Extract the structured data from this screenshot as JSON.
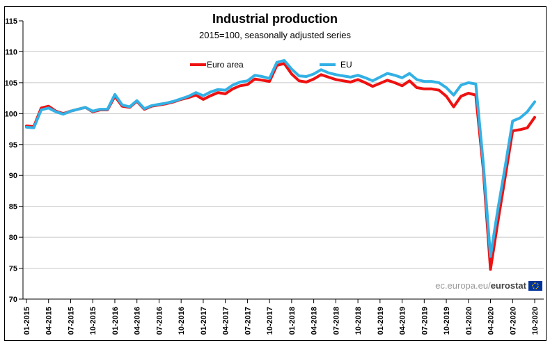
{
  "title": "Industrial production",
  "subtitle": "2015=100, seasonally adjusted series",
  "watermark": {
    "prefix": "ec.europa.eu/",
    "brand": "eurostat",
    "flag_icon": "eu-flag-icon",
    "flag_blue": "#003399",
    "flag_star_yellow": "#ffcc00"
  },
  "chart_data": {
    "type": "line",
    "title": "Industrial production",
    "subtitle": "2015=100, seasonally adjusted series",
    "x_frequency": "monthly",
    "x_start": "01-2015",
    "x_end": "10-2020",
    "x_tick_labels": [
      "01-2015",
      "04-2015",
      "07-2015",
      "10-2015",
      "01-2016",
      "04-2016",
      "07-2016",
      "10-2016",
      "01-2017",
      "04-2017",
      "07-2017",
      "10-2017",
      "01-2018",
      "04-2018",
      "07-2018",
      "10-2018",
      "01-2019",
      "04-2019",
      "07-2019",
      "10-2019",
      "01-2020",
      "04-2020",
      "07-2020",
      "10-2020"
    ],
    "x_tick_month_indices": [
      0,
      3,
      6,
      9,
      12,
      15,
      18,
      21,
      24,
      27,
      30,
      33,
      36,
      39,
      42,
      45,
      48,
      51,
      54,
      57,
      60,
      63,
      66,
      69
    ],
    "ylim": [
      70,
      115
    ],
    "y_ticks": [
      70,
      75,
      80,
      85,
      90,
      95,
      100,
      105,
      110,
      115
    ],
    "grid": "horizontal",
    "gridline_color": "#c8c8c8",
    "axis_color": "#000000",
    "legend_position": "top-inside",
    "series": [
      {
        "name": "Euro area",
        "color": "#ee1111",
        "values": [
          98.0,
          97.9,
          100.9,
          101.2,
          100.4,
          100.0,
          100.4,
          100.7,
          101.0,
          100.3,
          100.6,
          100.6,
          102.8,
          101.2,
          101.0,
          102.0,
          100.7,
          101.2,
          101.4,
          101.6,
          101.9,
          102.3,
          102.6,
          103.0,
          102.3,
          102.9,
          103.4,
          103.2,
          104.0,
          104.5,
          104.7,
          105.6,
          105.4,
          105.2,
          107.8,
          108.1,
          106.4,
          105.3,
          105.1,
          105.6,
          106.3,
          105.9,
          105.5,
          105.3,
          105.1,
          105.5,
          105.0,
          104.4,
          104.9,
          105.4,
          105.0,
          104.5,
          105.3,
          104.2,
          104.0,
          104.0,
          103.8,
          102.8,
          101.1,
          102.8,
          103.3,
          103.0,
          91.2,
          74.8,
          82.5,
          89.8,
          97.2,
          97.4,
          97.7,
          99.4
        ]
      },
      {
        "name": "EU",
        "color": "#33b1e5",
        "values": [
          97.8,
          97.7,
          100.6,
          100.9,
          100.3,
          99.9,
          100.4,
          100.7,
          101.0,
          100.4,
          100.7,
          100.7,
          103.1,
          101.4,
          101.1,
          102.1,
          100.8,
          101.3,
          101.5,
          101.7,
          102.0,
          102.4,
          102.8,
          103.4,
          102.9,
          103.5,
          103.9,
          103.8,
          104.6,
          105.1,
          105.3,
          106.2,
          106.0,
          105.7,
          108.3,
          108.6,
          107.2,
          106.1,
          106.0,
          106.4,
          107.1,
          106.6,
          106.3,
          106.1,
          105.9,
          106.2,
          105.8,
          105.3,
          105.9,
          106.5,
          106.2,
          105.8,
          106.5,
          105.5,
          105.2,
          105.2,
          105.0,
          104.2,
          103.0,
          104.6,
          105.0,
          104.8,
          92.2,
          76.9,
          84.5,
          91.5,
          98.8,
          99.3,
          100.3,
          101.9
        ]
      }
    ]
  }
}
